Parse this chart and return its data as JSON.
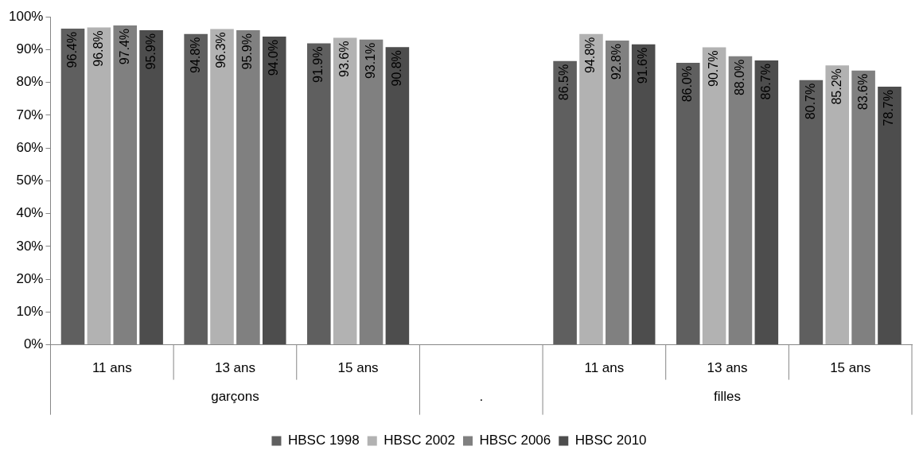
{
  "chart_data": {
    "type": "bar",
    "categories": [
      "11 ans",
      "13 ans",
      "15 ans",
      null,
      "11 ans",
      "13 ans",
      "15 ans"
    ],
    "annotations": [
      "garçons",
      ".",
      "filles"
    ],
    "series": [
      {
        "name": "HBSC 1998",
        "color": "#5f5f5f",
        "values": [
          96.4,
          94.8,
          91.9,
          null,
          86.5,
          86.0,
          80.7
        ],
        "value_labels": [
          "96.4%",
          "94.8%",
          "91.9%",
          null,
          "86.5%",
          "86.0%",
          "80.7%"
        ]
      },
      {
        "name": "HBSC 2002",
        "color": "#b2b2b2",
        "values": [
          96.8,
          96.3,
          93.6,
          null,
          94.8,
          90.7,
          85.2
        ],
        "value_labels": [
          "96.8%",
          "96.3%",
          "93.6%",
          null,
          "94.8%",
          "90.7%",
          "85.2%"
        ]
      },
      {
        "name": "HBSC 2006",
        "color": "#808080",
        "values": [
          97.4,
          95.9,
          93.1,
          null,
          92.8,
          88.0,
          83.6
        ],
        "value_labels": [
          "97.4%",
          "95.9%",
          "93.1%",
          null,
          "92.8%",
          "88.0%",
          "83.6%"
        ]
      },
      {
        "name": "HBSC 2010",
        "color": "#4d4d4d",
        "values": [
          95.9,
          94.0,
          90.8,
          null,
          91.6,
          86.7,
          78.7
        ],
        "value_labels": [
          "95.9%",
          "94.0%",
          "90.8%",
          null,
          "91.6%",
          "86.7%",
          "78.7%"
        ]
      }
    ],
    "ylim": [
      0,
      100
    ],
    "yticks": [
      {
        "value": 0,
        "label": "0%"
      },
      {
        "value": 10,
        "label": "10%"
      },
      {
        "value": 20,
        "label": "20%"
      },
      {
        "value": 30,
        "label": "30%"
      },
      {
        "value": 40,
        "label": "40%"
      },
      {
        "value": 50,
        "label": "50%"
      },
      {
        "value": 60,
        "label": "60%"
      },
      {
        "value": 70,
        "label": "70%"
      },
      {
        "value": 80,
        "label": "80%"
      },
      {
        "value": 90,
        "label": "90%"
      },
      {
        "value": 100,
        "label": "100%"
      }
    ],
    "grid": false,
    "legend": "bottom"
  }
}
